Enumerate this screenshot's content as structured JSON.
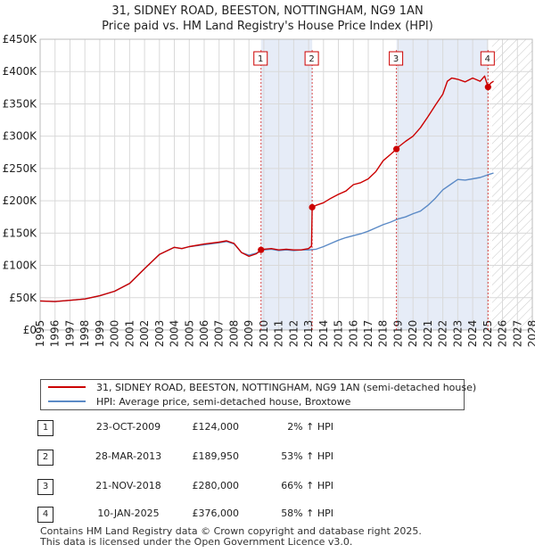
{
  "title_line1": "31, SIDNEY ROAD, BEESTON, NOTTINGHAM, NG9 1AN",
  "title_line2": "Price paid vs. HM Land Registry's House Price Index (HPI)",
  "chart_data": {
    "type": "line",
    "title": "Price paid vs. HM Land Registry's House Price Index (HPI)",
    "xlabel": "",
    "ylabel": "",
    "xlim": [
      1995,
      2028
    ],
    "ylim": [
      0,
      450000
    ],
    "y_ticks": [
      0,
      50000,
      100000,
      150000,
      200000,
      250000,
      300000,
      350000,
      400000,
      450000
    ],
    "y_tick_labels": [
      "£0",
      "£50K",
      "£100K",
      "£150K",
      "£200K",
      "£250K",
      "£300K",
      "£350K",
      "£400K",
      "£450K"
    ],
    "x_ticks": [
      1995,
      1996,
      1997,
      1998,
      1999,
      2000,
      2001,
      2002,
      2003,
      2004,
      2005,
      2006,
      2007,
      2008,
      2009,
      2010,
      2011,
      2012,
      2013,
      2014,
      2015,
      2016,
      2017,
      2018,
      2019,
      2020,
      2021,
      2022,
      2023,
      2024,
      2025,
      2026,
      2027,
      2028
    ],
    "grid": true,
    "forecast_from": 2025.3,
    "series": [
      {
        "name": "31, SIDNEY ROAD, BEESTON, NOTTINGHAM, NG9 1AN (semi-detached house)",
        "color": "#cc0000",
        "x": [
          1995.0,
          1996.0,
          1997.0,
          1998.0,
          1999.0,
          2000.0,
          2001.0,
          2002.0,
          2003.0,
          2004.0,
          2004.5,
          2005.0,
          2006.0,
          2007.0,
          2007.5,
          2008.0,
          2008.5,
          2009.0,
          2009.5,
          2009.81,
          2010.0,
          2010.5,
          2011.0,
          2011.5,
          2012.0,
          2012.5,
          2013.0,
          2013.2,
          2013.24,
          2013.5,
          2014.0,
          2014.5,
          2015.0,
          2015.5,
          2016.0,
          2016.5,
          2017.0,
          2017.5,
          2018.0,
          2018.5,
          2018.89,
          2019.0,
          2019.5,
          2020.0,
          2020.5,
          2021.0,
          2021.5,
          2022.0,
          2022.3,
          2022.6,
          2023.0,
          2023.5,
          2024.0,
          2024.5,
          2024.8,
          2025.03,
          2025.2,
          2025.4
        ],
        "values": [
          45000,
          44000,
          46000,
          48000,
          53000,
          60000,
          72000,
          95000,
          117000,
          128000,
          126000,
          129000,
          133000,
          136000,
          138000,
          134000,
          120000,
          114000,
          118000,
          124000,
          125000,
          126000,
          124000,
          125000,
          124000,
          124000,
          126000,
          130000,
          189950,
          193000,
          197000,
          204000,
          210000,
          215000,
          225000,
          228000,
          234000,
          245000,
          262000,
          272000,
          280000,
          283000,
          292000,
          300000,
          313000,
          330000,
          348000,
          365000,
          385000,
          390000,
          388000,
          384000,
          390000,
          385000,
          393000,
          376000,
          382000,
          385000
        ]
      },
      {
        "name": "HPI: Average price, semi-detached house, Broxtowe",
        "color": "#5b8ac6",
        "x": [
          1995.0,
          1996.0,
          1997.0,
          1998.0,
          1999.0,
          2000.0,
          2001.0,
          2002.0,
          2003.0,
          2004.0,
          2004.5,
          2005.0,
          2006.0,
          2007.0,
          2007.5,
          2008.0,
          2008.5,
          2009.0,
          2009.5,
          2010.0,
          2010.5,
          2011.0,
          2011.5,
          2012.0,
          2012.5,
          2013.0,
          2013.5,
          2014.0,
          2014.5,
          2015.0,
          2015.5,
          2016.0,
          2016.5,
          2017.0,
          2017.5,
          2018.0,
          2018.5,
          2019.0,
          2019.5,
          2020.0,
          2020.5,
          2021.0,
          2021.5,
          2022.0,
          2022.5,
          2023.0,
          2023.5,
          2024.0,
          2024.5,
          2025.0,
          2025.4
        ],
        "values": [
          45000,
          44000,
          46000,
          48000,
          53000,
          60000,
          72000,
          95000,
          117000,
          128000,
          126000,
          129000,
          132000,
          135000,
          137000,
          133000,
          120000,
          116000,
          119000,
          124000,
          125000,
          123000,
          124000,
          123000,
          124000,
          124000,
          125000,
          129000,
          134000,
          139000,
          143000,
          146000,
          149000,
          153000,
          158000,
          163000,
          167000,
          172000,
          175000,
          180000,
          184000,
          193000,
          204000,
          217000,
          225000,
          233000,
          232000,
          234000,
          236000,
          240000,
          243000
        ]
      }
    ],
    "sales": [
      {
        "n": "1",
        "x": 2009.81,
        "value": 124000
      },
      {
        "n": "2",
        "x": 2013.24,
        "value": 189950
      },
      {
        "n": "3",
        "x": 2018.89,
        "value": 280000
      },
      {
        "n": "4",
        "x": 2025.03,
        "value": 376000
      }
    ]
  },
  "legend": {
    "property": "31, SIDNEY ROAD, BEESTON, NOTTINGHAM, NG9 1AN (semi-detached house)",
    "hpi": "HPI: Average price, semi-detached house, Broxtowe"
  },
  "sales_table": [
    {
      "n": "1",
      "date": "23-OCT-2009",
      "price": "£124,000",
      "hpi": "2% ↑ HPI"
    },
    {
      "n": "2",
      "date": "28-MAR-2013",
      "price": "£189,950",
      "hpi": "53% ↑ HPI"
    },
    {
      "n": "3",
      "date": "21-NOV-2018",
      "price": "£280,000",
      "hpi": "66% ↑ HPI"
    },
    {
      "n": "4",
      "date": "10-JAN-2025",
      "price": "£376,000",
      "hpi": "58% ↑ HPI"
    }
  ],
  "footer_line1": "Contains HM Land Registry data © Crown copyright and database right 2025.",
  "footer_line2": "This data is licensed under the Open Government Licence v3.0."
}
